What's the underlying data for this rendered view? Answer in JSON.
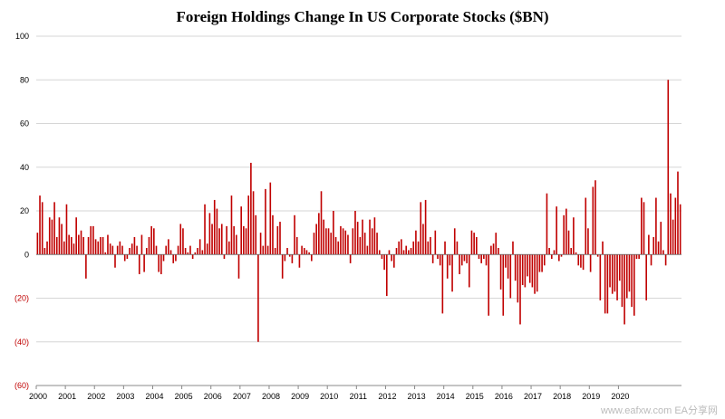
{
  "chart_data": {
    "type": "bar",
    "title": "Foreign Holdings Change In US Corporate Stocks ($BN)",
    "xlabel": "",
    "ylabel": "",
    "ylim": [
      -60,
      100
    ],
    "yticks": [
      {
        "value": 100,
        "label": "100"
      },
      {
        "value": 80,
        "label": "80"
      },
      {
        "value": 60,
        "label": "60"
      },
      {
        "value": 40,
        "label": "40"
      },
      {
        "value": 20,
        "label": "20"
      },
      {
        "value": 0,
        "label": "0"
      },
      {
        "value": -20,
        "label": "(20)"
      },
      {
        "value": -40,
        "label": "(40)"
      },
      {
        "value": -60,
        "label": "(60)"
      }
    ],
    "x_start_year": 2000,
    "xtick_labels": [
      "2000",
      "2001",
      "2002",
      "2003",
      "2004",
      "2005",
      "2006",
      "2007",
      "2008",
      "2009",
      "2010",
      "2011",
      "2012",
      "2013",
      "2014",
      "2015",
      "2016",
      "2017",
      "2018",
      "2019",
      "2020"
    ],
    "grid": true,
    "bar_color": "#c00000",
    "positive_tick_color": "#000000",
    "negative_tick_color": "#c00000",
    "series": [
      {
        "values": [
          10,
          27,
          24,
          3,
          6,
          17,
          16,
          24,
          8,
          17,
          14,
          6,
          23,
          9,
          8,
          5,
          17,
          9,
          11,
          8,
          -11,
          8,
          13,
          13,
          7,
          6,
          8,
          8,
          1,
          9,
          5,
          4,
          -6,
          4,
          6,
          4,
          -3,
          -2,
          3,
          5,
          8,
          4,
          -9,
          9,
          -8,
          3,
          8,
          13,
          12,
          4,
          -8,
          -9,
          -3,
          4,
          7,
          2,
          -4,
          -3,
          4,
          14,
          12,
          3,
          1,
          4,
          -2,
          1,
          3,
          7,
          2,
          23,
          5,
          19,
          14,
          25,
          21,
          12,
          14,
          -2,
          13,
          6,
          27,
          13,
          9,
          -11,
          22,
          13,
          12,
          27,
          42,
          29,
          18,
          -40,
          10,
          4,
          30,
          4,
          33,
          18,
          3,
          13,
          15,
          -11,
          -3,
          3,
          -1,
          -4,
          18,
          8,
          -6,
          4,
          3,
          2,
          1,
          -3,
          10,
          14,
          19,
          29,
          16,
          12,
          12,
          10,
          20,
          8,
          6,
          13,
          12,
          11,
          9,
          -4,
          12,
          20,
          15,
          8,
          16,
          10,
          4,
          16,
          12,
          17,
          10,
          2,
          -2,
          -7,
          -19,
          2,
          -3,
          -6,
          3,
          6,
          7,
          2,
          4,
          2,
          3,
          6,
          11,
          6,
          24,
          14,
          25,
          6,
          8,
          -4,
          11,
          -2,
          -5,
          -27,
          6,
          -11,
          -5,
          -17,
          12,
          6,
          -9,
          -5,
          -3,
          -4,
          -15,
          11,
          10,
          8,
          -2,
          -4,
          -2,
          -5,
          -28,
          4,
          5,
          10,
          3,
          -16,
          -28,
          -6,
          -11,
          -20,
          6,
          -12,
          -22,
          -32,
          -14,
          -15,
          -10,
          -13,
          -15,
          -18,
          -17,
          -8,
          -8,
          -5,
          28,
          3,
          -2,
          2,
          22,
          -3,
          -1,
          18,
          21,
          11,
          3,
          17,
          1,
          -5,
          -6,
          -7,
          26,
          12,
          -8,
          31,
          34,
          -1,
          -21,
          6,
          -27,
          -27,
          -15,
          -18,
          -17,
          -21,
          -12,
          -24,
          -32,
          -20,
          -17,
          -24,
          -28,
          -2,
          -2,
          26,
          24,
          -21,
          9,
          -5,
          8,
          26,
          6,
          15,
          2,
          -5,
          80,
          28,
          16,
          26,
          38,
          23
        ]
      }
    ]
  },
  "watermark": "www.eafxw.com   EA分享网"
}
